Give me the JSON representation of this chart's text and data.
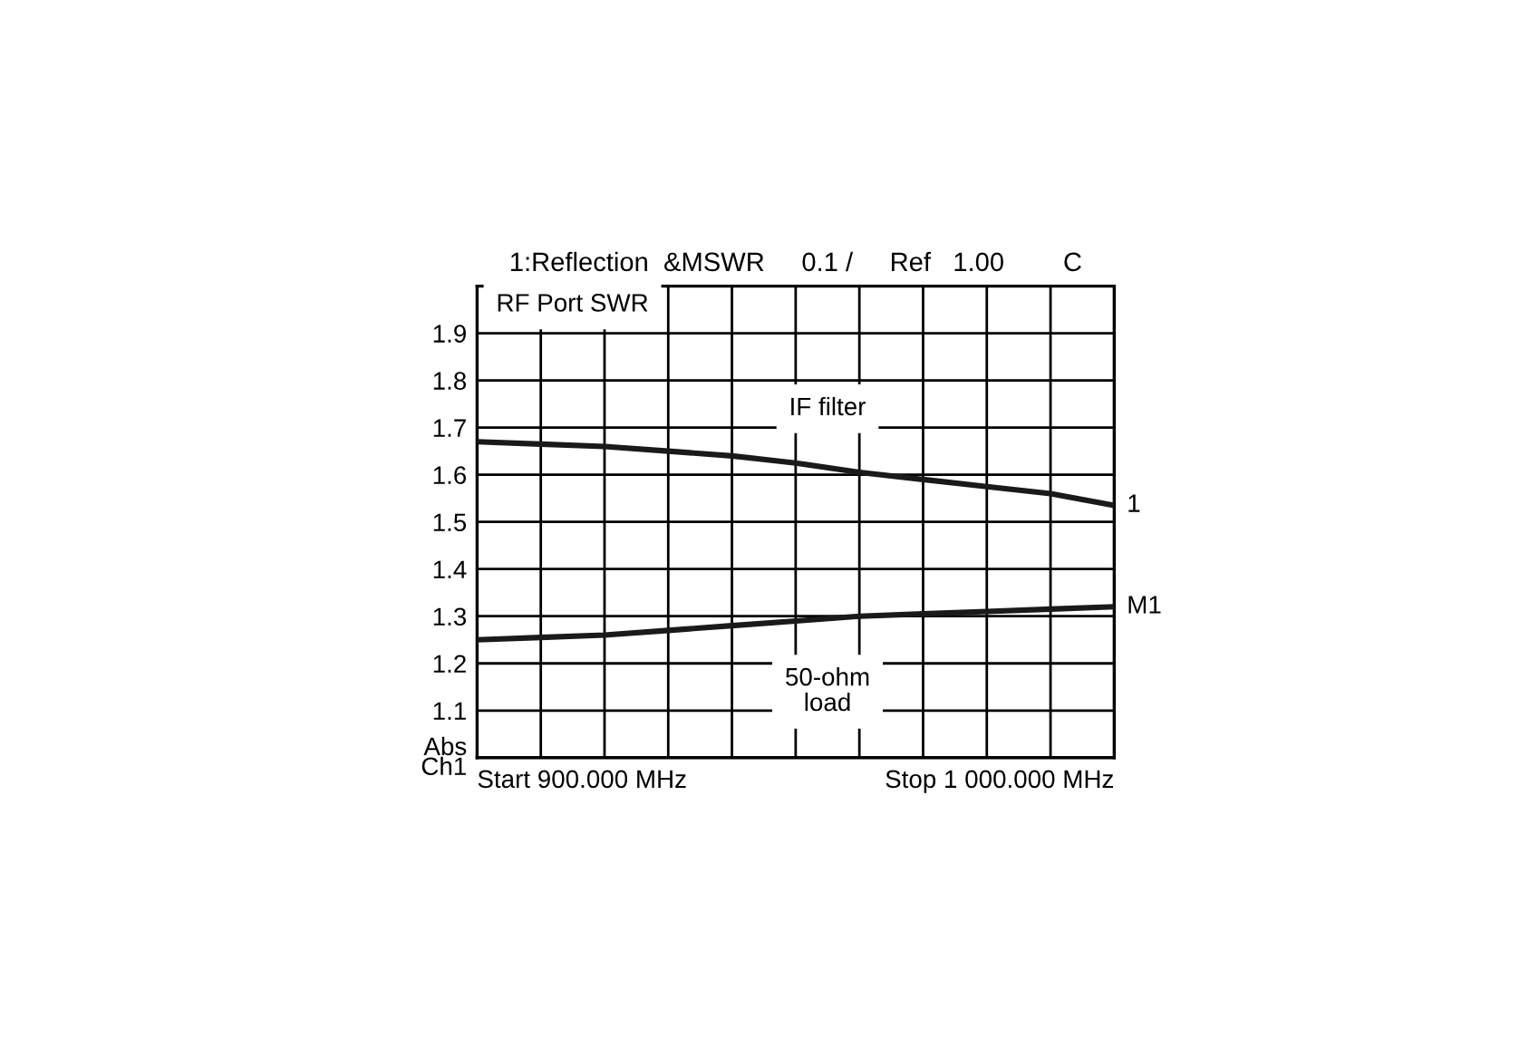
{
  "chart_data": {
    "type": "line",
    "title": "1:Reflection  &MSWR     0.1 /     Ref   1.00        C",
    "categories": [
      null,
      null,
      null,
      null,
      null,
      null,
      null,
      null,
      null,
      null,
      null
    ],
    "series": [
      {
        "name": "1",
        "color": "#1a1a1a",
        "values": [
          1.67,
          1.665,
          1.66,
          1.65,
          1.64,
          1.625,
          1.605,
          1.59,
          1.575,
          1.56,
          1.535
        ]
      },
      {
        "name": "M1",
        "color": "#1a1a1a",
        "values": [
          1.25,
          1.255,
          1.26,
          1.27,
          1.28,
          1.29,
          1.3,
          1.305,
          1.31,
          1.315,
          1.32
        ]
      }
    ],
    "ylim": [
      1.0,
      2.0
    ],
    "yticks": [
      {
        "value": 1.0,
        "label": "Abs\nCh1"
      },
      1.1,
      1.2,
      1.3,
      1.4,
      1.5,
      1.6,
      1.7,
      1.8,
      1.9,
      {
        "value": 2.0,
        "label": null
      }
    ],
    "grid": true,
    "legend": false,
    "marker": "none",
    "line_style": "solid",
    "annotations": [
      "RF Port SWR",
      "IF filter",
      "50-ohm\nload",
      "Start 900.000 MHz",
      "Stop 1 000.000 MHz"
    ]
  }
}
